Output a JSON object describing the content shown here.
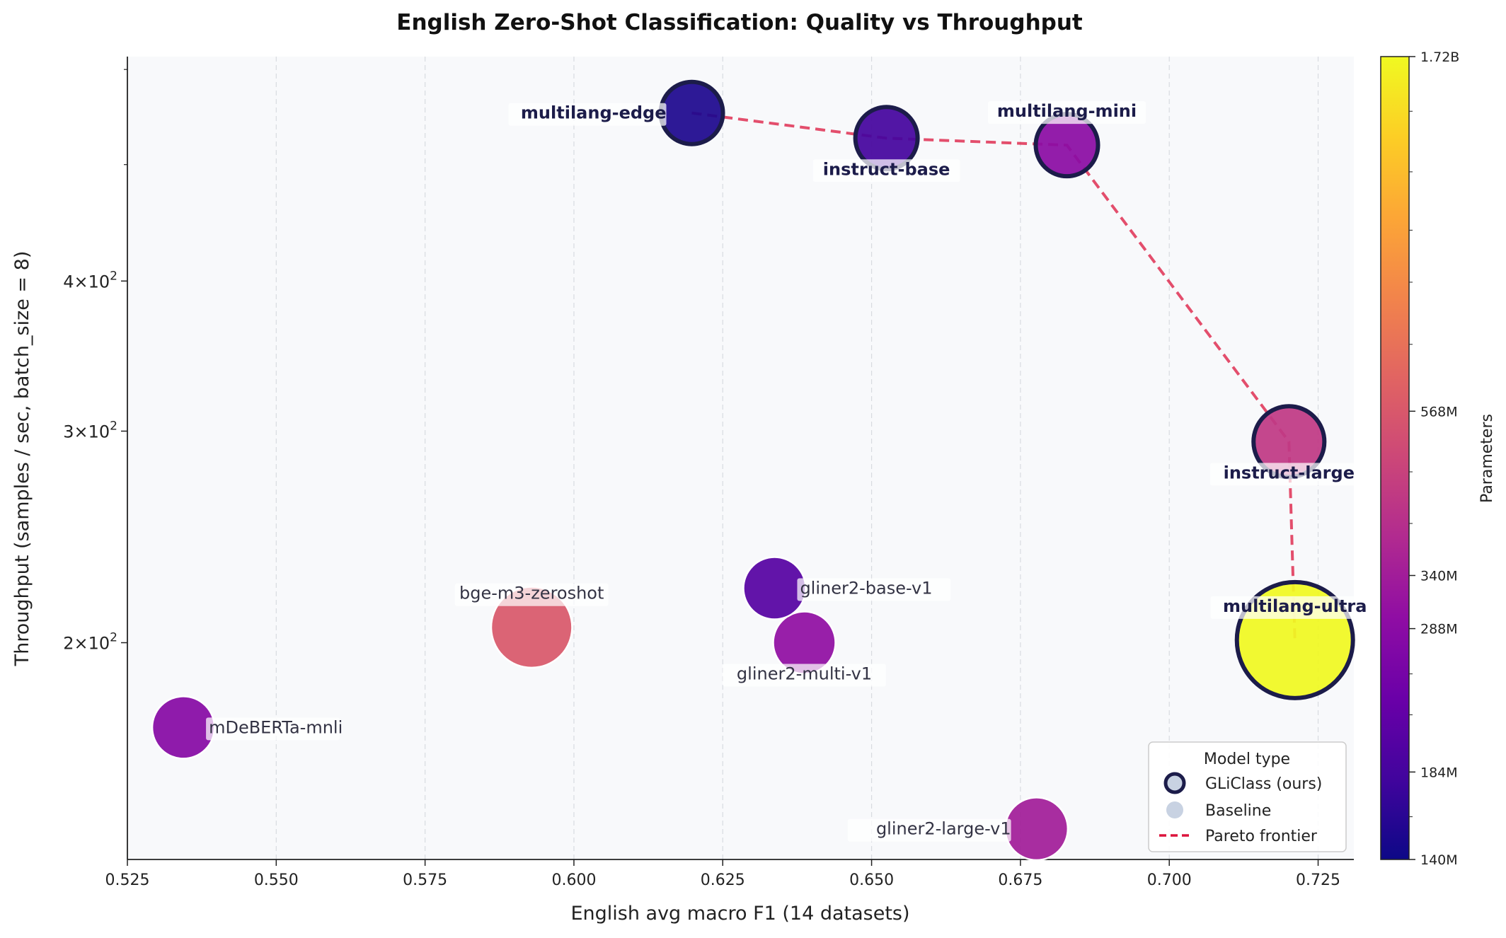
{
  "chart_data": {
    "type": "scatter",
    "title": "English Zero-Shot Classification: Quality vs Throughput",
    "xlabel": "English avg macro F1  (14 datasets)",
    "ylabel": "Throughput  (samples / sec,  batch_size = 8)",
    "xlim": [
      0.525,
      0.731
    ],
    "ylim": [
      132,
      615
    ],
    "yscale": "log",
    "grid": "x-only, dashed",
    "x_ticks": [
      "0.525",
      "0.550",
      "0.575",
      "0.600",
      "0.625",
      "0.650",
      "0.675",
      "0.700",
      "0.725"
    ],
    "y_ticks": [
      {
        "value": 200,
        "mantissa": "2",
        "exp": "2"
      },
      {
        "value": 300,
        "mantissa": "3",
        "exp": "2"
      },
      {
        "value": 400,
        "mantissa": "4",
        "exp": "2"
      }
    ],
    "colorbar": {
      "label": "Parameters",
      "colormap": "plasma",
      "scale": "log",
      "min_params_m": 140,
      "max_params_m": 1720,
      "ticks": [
        {
          "value": 140,
          "label": "140M"
        },
        {
          "value": 184,
          "label": "184M"
        },
        {
          "value": 288,
          "label": "288M"
        },
        {
          "value": 340,
          "label": "340M"
        },
        {
          "value": 568,
          "label": "568M"
        },
        {
          "value": 1720,
          "label": "1.72B"
        }
      ]
    },
    "points": [
      {
        "name": "multilang-edge",
        "x": 0.6198,
        "y": 552,
        "params_m": 151,
        "type": "gliclass",
        "label_pos": "left"
      },
      {
        "name": "instruct-base",
        "x": 0.6525,
        "y": 526,
        "params_m": 184,
        "type": "gliclass",
        "label_pos": "below"
      },
      {
        "name": "multilang-mini",
        "x": 0.6828,
        "y": 519,
        "params_m": 290,
        "type": "gliclass",
        "label_pos": "above"
      },
      {
        "name": "instruct-large",
        "x": 0.7201,
        "y": 294,
        "params_m": 435,
        "type": "gliclass",
        "label_pos": "below"
      },
      {
        "name": "multilang-ultra",
        "x": 0.7211,
        "y": 201,
        "params_m": 1720,
        "type": "gliclass",
        "label_pos": "above"
      },
      {
        "name": "bge-m3-zeroshot",
        "x": 0.5929,
        "y": 206,
        "params_m": 568,
        "type": "baseline",
        "label_pos": "above"
      },
      {
        "name": "gliner2-base-v1",
        "x": 0.6337,
        "y": 222,
        "params_m": 205,
        "type": "baseline",
        "label_pos": "right"
      },
      {
        "name": "gliner2-multi-v1",
        "x": 0.6387,
        "y": 200,
        "params_m": 300,
        "type": "baseline",
        "label_pos": "below"
      },
      {
        "name": "mDeBERTa-mnli",
        "x": 0.5344,
        "y": 170,
        "params_m": 280,
        "type": "baseline",
        "label_pos": "right"
      },
      {
        "name": "gliner2-large-v1",
        "x": 0.6777,
        "y": 140,
        "params_m": 340,
        "type": "baseline",
        "label_pos": "left"
      }
    ],
    "pareto_frontier": [
      "multilang-edge",
      "instruct-base",
      "multilang-mini",
      "instruct-large",
      "multilang-ultra"
    ],
    "legend": {
      "title": "Model type",
      "position": "lower-right",
      "entries": [
        {
          "label": "GLiClass (ours)",
          "marker": "ring-circle"
        },
        {
          "label": "Baseline",
          "marker": "circle"
        },
        {
          "label": "Pareto frontier",
          "marker": "dashed-line"
        }
      ]
    },
    "colors": {
      "frontier": "#dc143c",
      "gliclass_edge": "#1c1c4a",
      "baseline_edge": "#ffffff",
      "plot_bg": "#f8f9fb",
      "label_dark": "#1c1c4a",
      "label_light": "#333344"
    }
  }
}
